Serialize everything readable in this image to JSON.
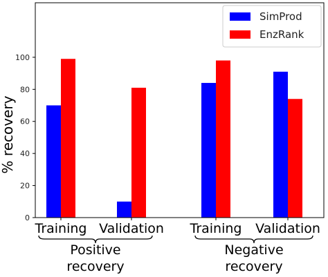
{
  "chart_data": {
    "type": "bar",
    "categories": [
      "Training",
      "Validation",
      "Training",
      "Validation"
    ],
    "groups": [
      {
        "label_lines": [
          "Positive",
          "recovery"
        ],
        "categories": [
          0,
          1
        ]
      },
      {
        "label_lines": [
          "Negative",
          "recovery"
        ],
        "categories": [
          2,
          3
        ]
      }
    ],
    "series": [
      {
        "name": "SimProd",
        "color": "#0000ff",
        "values": [
          70,
          10,
          84,
          91
        ]
      },
      {
        "name": "EnzRank",
        "color": "#ff0000",
        "values": [
          99,
          81,
          98,
          74
        ]
      }
    ],
    "ylabel": "% recovery",
    "xlabel": "",
    "title": "",
    "ylim": [
      0,
      134
    ],
    "yticks": [
      0,
      20,
      40,
      60,
      80,
      100
    ],
    "grid": false,
    "legend_position": "top-right"
  }
}
